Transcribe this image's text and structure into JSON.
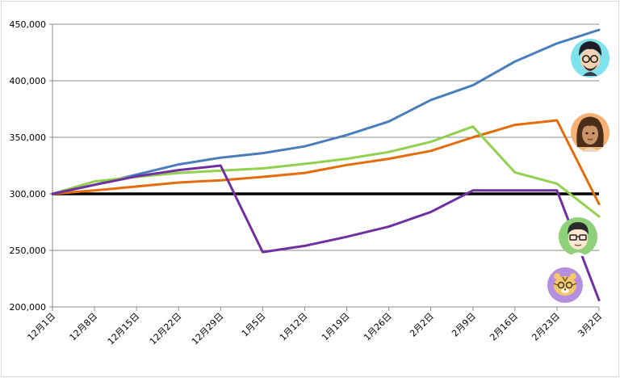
{
  "chart_data": {
    "type": "line",
    "categories": [
      "12月1日",
      "12月8日",
      "12月15日",
      "12月22日",
      "12月29日",
      "1月5日",
      "1月12日",
      "1月19日",
      "1月26日",
      "2月2日",
      "2月9日",
      "2月16日",
      "2月23日",
      "3月2日"
    ],
    "ylim": [
      200000,
      450000
    ],
    "yticks": [
      "200,000",
      "250,000",
      "300,000",
      "350,000",
      "400,000",
      "450,000"
    ],
    "ytick_values": [
      200000,
      250000,
      300000,
      350000,
      400000,
      450000
    ],
    "reference_line": {
      "value": 300000,
      "color": "#000000"
    },
    "grid": true,
    "series": [
      {
        "color": "#4a7ebb",
        "icon": "man-glasses-beard-avatar-icon",
        "values": [
          300000,
          308000,
          317000,
          326000,
          332000,
          336000,
          342000,
          352000,
          364000,
          383000,
          396000,
          417000,
          433000,
          445000
        ]
      },
      {
        "color": "#e46c0a",
        "icon": "woman-long-hair-avatar-icon",
        "values": [
          300000,
          303000,
          306500,
          310000,
          312000,
          315000,
          318500,
          325500,
          331000,
          338000,
          350000,
          361000,
          365000,
          291000
        ]
      },
      {
        "color": "#92d050",
        "icon": "man-glasses-green-avatar-icon",
        "values": [
          300000,
          311000,
          315000,
          318500,
          320500,
          322500,
          326500,
          331000,
          337000,
          346000,
          359500,
          319000,
          309000,
          280000
        ]
      },
      {
        "color": "#7030a0",
        "icon": "tiger-avatar-icon",
        "values": [
          300000,
          308000,
          315500,
          321000,
          325000,
          248500,
          254000,
          262000,
          271000,
          284000,
          303000,
          303000,
          303000,
          206000
        ]
      }
    ]
  }
}
